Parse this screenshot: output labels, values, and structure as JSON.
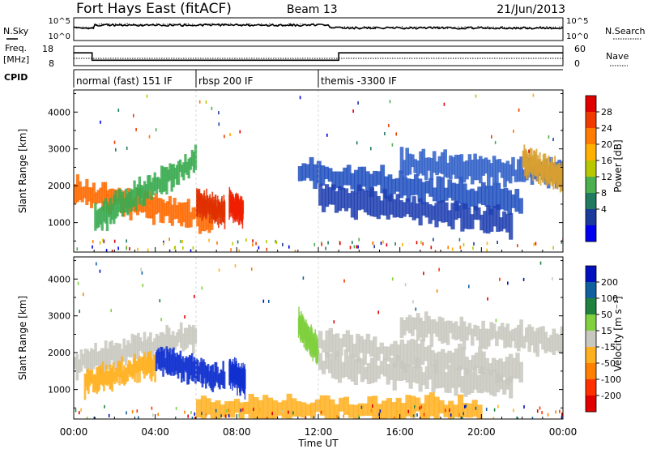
{
  "header": {
    "station": "Fort Hays East (fitACF)",
    "beam": "Beam 13",
    "date": "21/Jun/2013"
  },
  "chart_data": [
    {
      "type": "line",
      "panel": "noise",
      "left_label": "N.Sky",
      "right_label": "N.Search",
      "left_ticks": [
        "10^5",
        "10^0"
      ],
      "right_ticks": [
        "10^5",
        "10^0"
      ],
      "xlim_hours": [
        0,
        24
      ]
    },
    {
      "type": "line",
      "panel": "frequency",
      "left_label_line1": "Freq.",
      "left_label_line2": "[MHz]",
      "right_label": "Nave",
      "left_ticks": [
        "18",
        "8"
      ],
      "right_ticks": [
        "60",
        "0"
      ],
      "freq_steps": [
        {
          "start_hour": 0,
          "end_hour": 0.9,
          "freq_mhz": 14.6
        },
        {
          "start_hour": 0.9,
          "end_hour": 13.0,
          "freq_mhz": 10.8
        },
        {
          "start_hour": 13.0,
          "end_hour": 24,
          "freq_mhz": 14.6
        }
      ],
      "ylim": [
        8,
        18
      ]
    },
    {
      "type": "table",
      "panel": "cpid",
      "label": "CPID",
      "segments": [
        {
          "name": "normal (fast) 151 IF",
          "start_hour": 0,
          "end_hour": 6.0
        },
        {
          "name": "rbsp 200 IF",
          "start_hour": 6.0,
          "end_hour": 12.0
        },
        {
          "name": "themis -3300 IF",
          "start_hour": 12.0,
          "end_hour": 24
        }
      ]
    },
    {
      "type": "heatmap",
      "panel": "power",
      "ylabel": "Slant Range [km]",
      "ylim": [
        200,
        4600
      ],
      "y_ticks": [
        1000,
        2000,
        3000,
        4000
      ],
      "colorbar_label": "Power [dB]",
      "colorbar_ticks": [
        "28",
        "24",
        "20",
        "16",
        "12",
        "8",
        "4"
      ],
      "colorbar_colors": [
        "#e00000",
        "#f03a00",
        "#ff7a00",
        "#ffb000",
        "#b8c800",
        "#4caf50",
        "#1f7a60",
        "#1a3a9c",
        "#0000f0"
      ],
      "bands": [
        {
          "start_hour": 0.0,
          "end_hour": 6.8,
          "r_start": 1900,
          "r_end": 1050,
          "color": "#ff6a00"
        },
        {
          "start_hour": 1.0,
          "end_hour": 6.0,
          "r_start": 1100,
          "r_end": 2700,
          "color": "#3aaa50"
        },
        {
          "start_hour": 6.0,
          "end_hour": 7.4,
          "r_start": 1550,
          "r_end": 1300,
          "color": "#e03000"
        },
        {
          "start_hour": 7.6,
          "end_hour": 8.3,
          "r_start": 1500,
          "r_end": 1300,
          "color": "#f02000"
        },
        {
          "start_hour": 11.0,
          "end_hour": 22.0,
          "r_start": 2400,
          "r_end": 1500,
          "color": "#2050c0"
        },
        {
          "start_hour": 12.0,
          "end_hour": 21.5,
          "r_start": 1700,
          "r_end": 1000,
          "color": "#2040b0"
        },
        {
          "start_hour": 16.0,
          "end_hour": 24.0,
          "r_start": 2600,
          "r_end": 2300,
          "color": "#3060c8"
        },
        {
          "start_hour": 22.0,
          "end_hour": 24.0,
          "r_start": 2700,
          "r_end": 2200,
          "color": "#d8a030"
        }
      ]
    },
    {
      "type": "heatmap",
      "panel": "velocity",
      "xlabel": "Time UT",
      "ylabel": "Slant Range [km]",
      "ylim": [
        200,
        4600
      ],
      "y_ticks": [
        1000,
        2000,
        3000,
        4000
      ],
      "x_ticks": [
        "00:00",
        "04:00",
        "08:00",
        "12:00",
        "16:00",
        "20:00",
        "00:00"
      ],
      "colorbar_label": "Velocity [m s⁻¹]",
      "colorbar_ticks": [
        "200",
        "100",
        "50",
        "15",
        "-15",
        "-50",
        "-100",
        "-200"
      ],
      "colorbar_colors": [
        "#0010c0",
        "#1060a0",
        "#208040",
        "#80d040",
        "#c8c8c0",
        "#ffb020",
        "#ff8000",
        "#ff3000",
        "#e00000"
      ],
      "bands": [
        {
          "start_hour": 0.0,
          "end_hour": 6.0,
          "r_start": 1700,
          "r_end": 2500,
          "color": "#c8c8c0"
        },
        {
          "start_hour": 0.5,
          "end_hour": 4.0,
          "r_start": 1200,
          "r_end": 1700,
          "color": "#ffb020"
        },
        {
          "start_hour": 4.0,
          "end_hour": 7.4,
          "r_start": 1800,
          "r_end": 1300,
          "color": "#1030d0"
        },
        {
          "start_hour": 7.6,
          "end_hour": 8.4,
          "r_start": 1500,
          "r_end": 1200,
          "color": "#1030d0"
        },
        {
          "start_hour": 11.0,
          "end_hour": 12.0,
          "r_start": 2800,
          "r_end": 2000,
          "color": "#80d040"
        },
        {
          "start_hour": 12.0,
          "end_hour": 22.0,
          "r_start": 2300,
          "r_end": 1500,
          "color": "#c8c8c0"
        },
        {
          "start_hour": 12.0,
          "end_hour": 21.5,
          "r_start": 1700,
          "r_end": 1100,
          "color": "#c8c8c0"
        },
        {
          "start_hour": 16.0,
          "end_hour": 24.0,
          "r_start": 2700,
          "r_end": 2300,
          "color": "#c8c8c0"
        },
        {
          "start_hour": 6.0,
          "end_hour": 20.0,
          "r_start": 450,
          "r_end": 500,
          "color": "#ffb020"
        }
      ]
    }
  ]
}
